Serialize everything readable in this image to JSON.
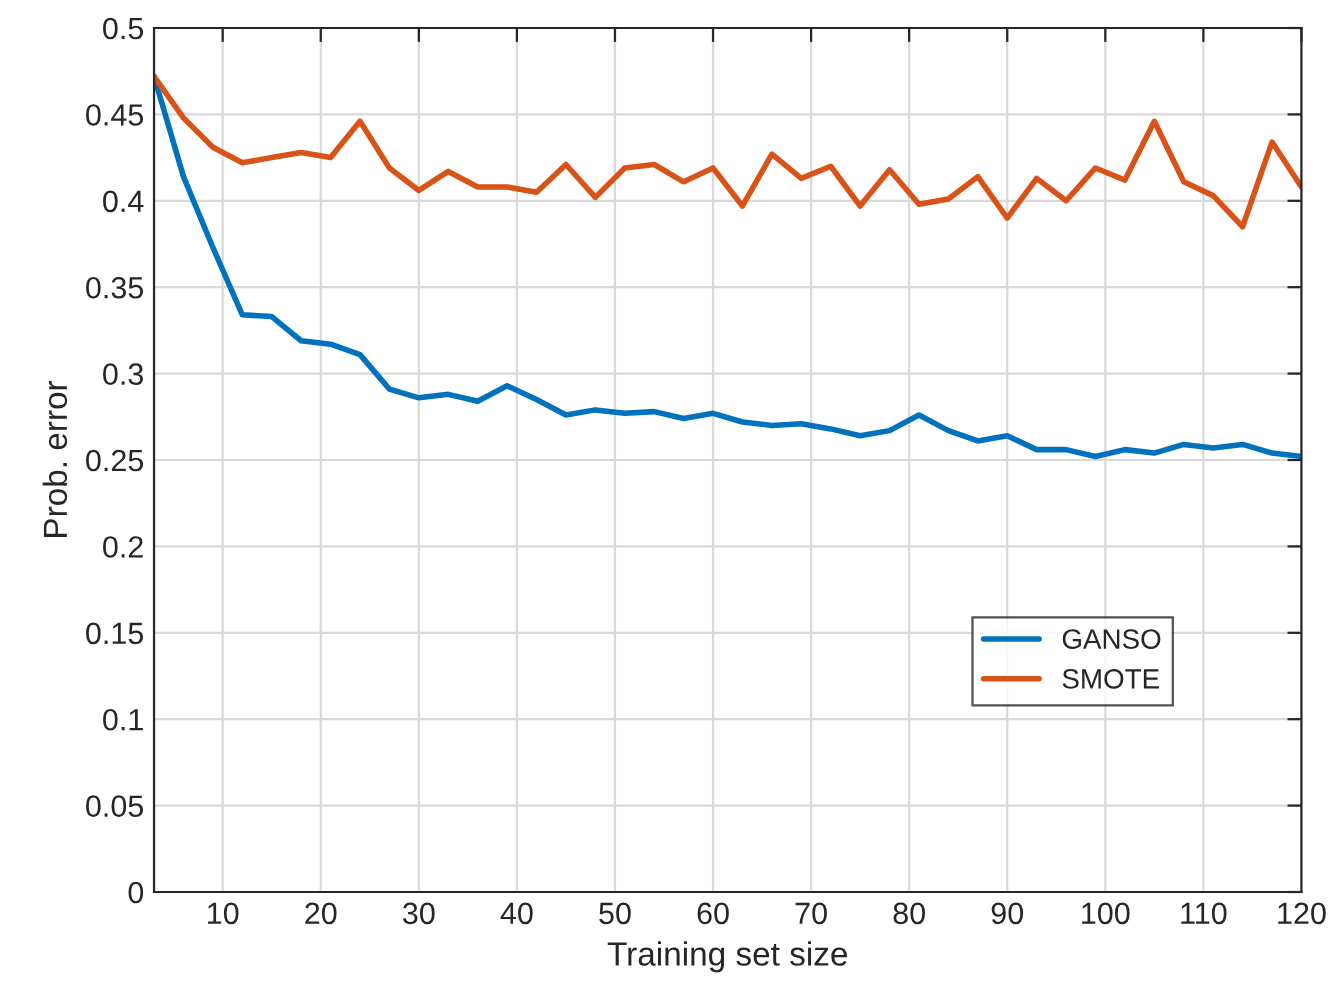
{
  "chart_data": {
    "type": "line",
    "xlabel": "Training set size",
    "ylabel": "Prob. error",
    "x": [
      3,
      6,
      9,
      12,
      15,
      18,
      21,
      24,
      27,
      30,
      33,
      36,
      39,
      42,
      45,
      48,
      51,
      54,
      57,
      60,
      63,
      66,
      69,
      72,
      75,
      78,
      81,
      84,
      87,
      90,
      93,
      96,
      99,
      102,
      105,
      108,
      111,
      114,
      117,
      120
    ],
    "series": [
      {
        "name": "GANSO",
        "color": "#0072bd",
        "values": [
          0.472,
          0.414,
          0.373,
          0.334,
          0.333,
          0.319,
          0.317,
          0.311,
          0.291,
          0.286,
          0.288,
          0.284,
          0.293,
          0.285,
          0.276,
          0.279,
          0.277,
          0.278,
          0.274,
          0.277,
          0.272,
          0.27,
          0.271,
          0.268,
          0.264,
          0.267,
          0.276,
          0.267,
          0.261,
          0.264,
          0.256,
          0.256,
          0.252,
          0.256,
          0.254,
          0.259,
          0.257,
          0.259,
          0.254,
          0.252
        ]
      },
      {
        "name": "SMOTE",
        "color": "#d95319",
        "values": [
          0.472,
          0.448,
          0.431,
          0.422,
          0.425,
          0.428,
          0.425,
          0.446,
          0.419,
          0.406,
          0.417,
          0.408,
          0.408,
          0.405,
          0.421,
          0.402,
          0.419,
          0.421,
          0.411,
          0.419,
          0.397,
          0.427,
          0.413,
          0.42,
          0.397,
          0.418,
          0.398,
          0.401,
          0.414,
          0.39,
          0.413,
          0.4,
          0.419,
          0.412,
          0.446,
          0.411,
          0.403,
          0.385,
          0.434,
          0.408
        ]
      }
    ],
    "xlim": [
      3,
      120
    ],
    "xticks": [
      10,
      20,
      30,
      40,
      50,
      60,
      70,
      80,
      90,
      100,
      110,
      120
    ],
    "ylim": [
      0,
      0.5
    ],
    "yticks": [
      0,
      0.05,
      0.1,
      0.15,
      0.2,
      0.25,
      0.3,
      0.35,
      0.4,
      0.45,
      0.5
    ],
    "grid": true,
    "legend": "lower right",
    "marker": "none",
    "line_style": "solid"
  }
}
